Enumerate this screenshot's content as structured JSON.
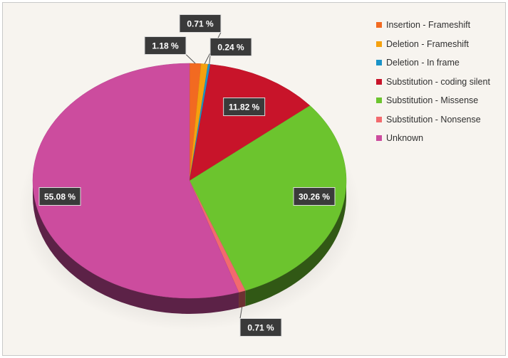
{
  "chart_data": {
    "type": "pie",
    "title": "",
    "legend_position": "right",
    "slices": [
      {
        "name": "Insertion - Frameshift",
        "value": 1.18,
        "label": "1.18 %",
        "color": "#f26a21"
      },
      {
        "name": "Deletion - Frameshift",
        "value": 0.71,
        "label": "0.71 %",
        "color": "#f5a10e"
      },
      {
        "name": "Deletion - In frame",
        "value": 0.24,
        "label": "0.24 %",
        "color": "#1a93c8"
      },
      {
        "name": "Substitution - coding silent",
        "value": 11.82,
        "label": "11.82 %",
        "color": "#c8142a"
      },
      {
        "name": "Substitution - Missense",
        "value": 30.26,
        "label": "30.26 %",
        "color": "#6cc42e"
      },
      {
        "name": "Substitution - Nonsense",
        "value": 0.71,
        "label": "0.71 %",
        "color": "#f26a6e"
      },
      {
        "name": "Unknown",
        "value": 55.08,
        "label": "55.08 %",
        "color": "#cc4c9e"
      }
    ]
  }
}
